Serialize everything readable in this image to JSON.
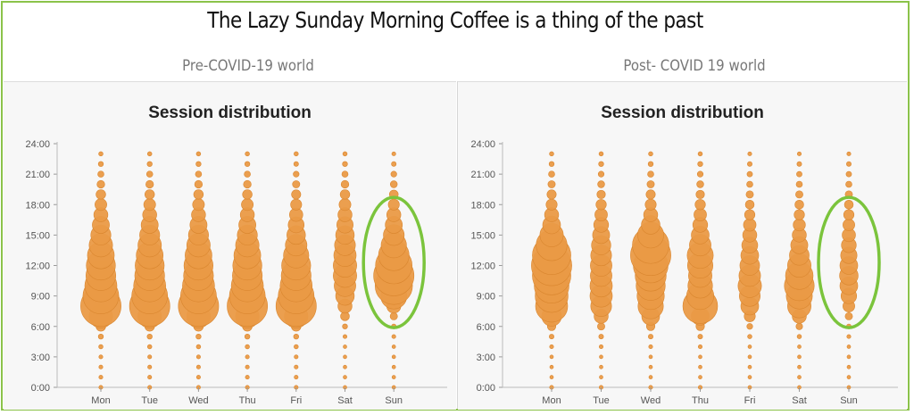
{
  "title": "The Lazy Sunday Morning Coffee is a thing of the past",
  "colors": {
    "bubble": "#ea9a46",
    "bubble_stroke": "#d9862f",
    "highlight": "#7bc43c",
    "frame": "#8bc34a"
  },
  "chart_data": [
    {
      "type": "scatter",
      "panel_label": "Pre-COVID-19 world",
      "title": "Session distribution",
      "categories": [
        "Mon",
        "Tue",
        "Wed",
        "Thu",
        "Fri",
        "Sat",
        "Sun"
      ],
      "y_ticks": [
        "0:00",
        "3:00",
        "6:00",
        "9:00",
        "12:00",
        "15:00",
        "18:00",
        "21:00",
        "24:00"
      ],
      "ylim": [
        0,
        24
      ],
      "hours": [
        0,
        1,
        2,
        3,
        4,
        5,
        6,
        7,
        8,
        9,
        10,
        11,
        12,
        13,
        14,
        15,
        16,
        17,
        18,
        19,
        20,
        21,
        22,
        23
      ],
      "highlight": "Sun",
      "series": [
        {
          "values": [
            0.03,
            0.03,
            0.03,
            0.03,
            0.04,
            0.06,
            0.18,
            0.55,
            1.0,
            0.88,
            0.78,
            0.72,
            0.7,
            0.64,
            0.55,
            0.46,
            0.38,
            0.3,
            0.24,
            0.18,
            0.13,
            0.09,
            0.06,
            0.04
          ]
        },
        {
          "values": [
            0.03,
            0.03,
            0.03,
            0.03,
            0.04,
            0.06,
            0.18,
            0.55,
            1.0,
            0.88,
            0.78,
            0.72,
            0.7,
            0.64,
            0.55,
            0.46,
            0.38,
            0.3,
            0.24,
            0.18,
            0.13,
            0.09,
            0.06,
            0.04
          ]
        },
        {
          "values": [
            0.03,
            0.03,
            0.03,
            0.03,
            0.04,
            0.06,
            0.18,
            0.55,
            1.0,
            0.88,
            0.78,
            0.72,
            0.7,
            0.64,
            0.55,
            0.46,
            0.38,
            0.3,
            0.24,
            0.18,
            0.13,
            0.09,
            0.06,
            0.04
          ]
        },
        {
          "values": [
            0.03,
            0.03,
            0.03,
            0.03,
            0.04,
            0.06,
            0.18,
            0.55,
            1.0,
            0.88,
            0.78,
            0.72,
            0.7,
            0.64,
            0.55,
            0.46,
            0.38,
            0.3,
            0.24,
            0.18,
            0.13,
            0.09,
            0.06,
            0.04
          ]
        },
        {
          "values": [
            0.03,
            0.03,
            0.03,
            0.03,
            0.04,
            0.06,
            0.18,
            0.55,
            1.0,
            0.88,
            0.78,
            0.72,
            0.7,
            0.6,
            0.5,
            0.42,
            0.35,
            0.28,
            0.22,
            0.17,
            0.12,
            0.08,
            0.05,
            0.04
          ]
        },
        {
          "values": [
            0.02,
            0.02,
            0.02,
            0.02,
            0.02,
            0.03,
            0.06,
            0.16,
            0.3,
            0.42,
            0.5,
            0.55,
            0.55,
            0.52,
            0.48,
            0.42,
            0.36,
            0.3,
            0.24,
            0.18,
            0.13,
            0.09,
            0.06,
            0.04
          ]
        },
        {
          "values": [
            0.02,
            0.02,
            0.02,
            0.02,
            0.02,
            0.03,
            0.05,
            0.12,
            0.3,
            0.62,
            0.92,
            1.0,
            0.9,
            0.74,
            0.6,
            0.48,
            0.38,
            0.3,
            0.22,
            0.16,
            0.11,
            0.08,
            0.05,
            0.03
          ]
        }
      ]
    },
    {
      "type": "scatter",
      "panel_label": "Post- COVID 19 world",
      "title": "Session distribution",
      "categories": [
        "Mon",
        "Tue",
        "Wed",
        "Thu",
        "Fri",
        "Sat",
        "Sun"
      ],
      "y_ticks": [
        "0:00",
        "3:00",
        "6:00",
        "9:00",
        "12:00",
        "15:00",
        "18:00",
        "21:00",
        "24:00"
      ],
      "ylim": [
        0,
        24
      ],
      "hours": [
        0,
        1,
        2,
        3,
        4,
        5,
        6,
        7,
        8,
        9,
        10,
        11,
        12,
        13,
        14,
        15,
        16,
        17,
        18,
        19,
        20,
        21,
        22,
        23
      ],
      "highlight": "Sun",
      "series": [
        {
          "values": [
            0.03,
            0.02,
            0.02,
            0.02,
            0.03,
            0.05,
            0.15,
            0.45,
            0.78,
            0.8,
            0.85,
            0.95,
            1.0,
            0.95,
            0.75,
            0.55,
            0.4,
            0.3,
            0.22,
            0.17,
            0.12,
            0.09,
            0.06,
            0.04
          ]
        },
        {
          "values": [
            0.03,
            0.02,
            0.02,
            0.02,
            0.03,
            0.05,
            0.12,
            0.3,
            0.48,
            0.52,
            0.52,
            0.5,
            0.5,
            0.48,
            0.44,
            0.38,
            0.32,
            0.26,
            0.2,
            0.15,
            0.11,
            0.08,
            0.06,
            0.04
          ]
        },
        {
          "values": [
            0.03,
            0.02,
            0.02,
            0.02,
            0.03,
            0.05,
            0.15,
            0.4,
            0.6,
            0.65,
            0.7,
            0.75,
            0.85,
            1.0,
            0.9,
            0.62,
            0.42,
            0.3,
            0.22,
            0.17,
            0.12,
            0.09,
            0.06,
            0.04
          ]
        },
        {
          "values": [
            0.03,
            0.02,
            0.02,
            0.02,
            0.03,
            0.05,
            0.15,
            0.4,
            0.85,
            0.65,
            0.58,
            0.55,
            0.6,
            0.62,
            0.5,
            0.4,
            0.32,
            0.26,
            0.2,
            0.15,
            0.11,
            0.08,
            0.06,
            0.04
          ]
        },
        {
          "values": [
            0.02,
            0.02,
            0.02,
            0.02,
            0.02,
            0.04,
            0.08,
            0.22,
            0.4,
            0.48,
            0.55,
            0.5,
            0.45,
            0.4,
            0.35,
            0.3,
            0.26,
            0.2,
            0.16,
            0.12,
            0.09,
            0.07,
            0.05,
            0.03
          ]
        },
        {
          "values": [
            0.02,
            0.02,
            0.02,
            0.02,
            0.02,
            0.04,
            0.1,
            0.3,
            0.55,
            0.62,
            0.72,
            0.66,
            0.55,
            0.45,
            0.38,
            0.3,
            0.25,
            0.2,
            0.16,
            0.12,
            0.09,
            0.07,
            0.05,
            0.03
          ]
        },
        {
          "values": [
            0.02,
            0.02,
            0.02,
            0.02,
            0.02,
            0.03,
            0.05,
            0.12,
            0.24,
            0.34,
            0.4,
            0.42,
            0.4,
            0.36,
            0.32,
            0.28,
            0.24,
            0.2,
            0.16,
            0.12,
            0.09,
            0.07,
            0.05,
            0.03
          ]
        }
      ]
    }
  ]
}
